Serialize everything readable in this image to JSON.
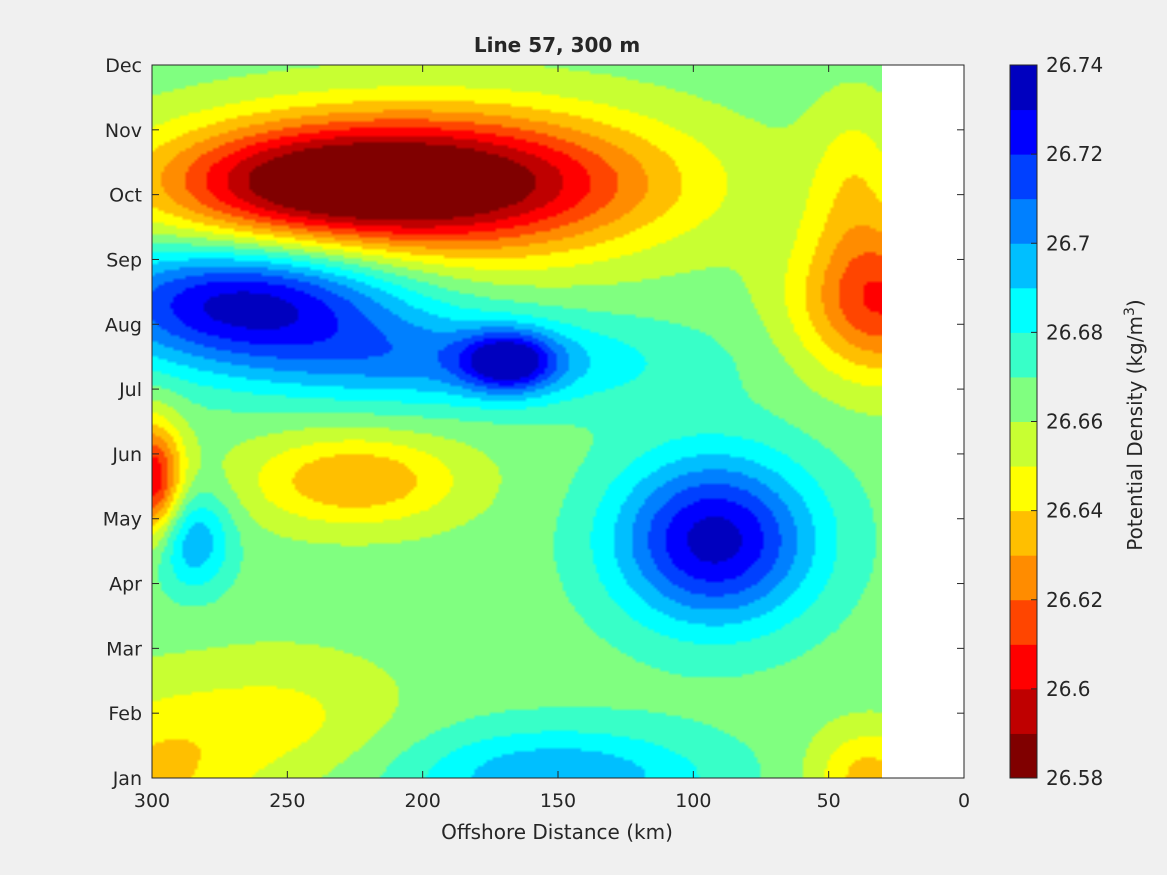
{
  "chart_data": {
    "type": "heatmap",
    "subtype": "filled-contour",
    "title": "Line 57, 300 m",
    "xlabel": "Offshore Distance (km)",
    "xlim": [
      300,
      0
    ],
    "x_reversed": true,
    "xticks": [
      300,
      250,
      200,
      150,
      100,
      50,
      0
    ],
    "y_categories": [
      "Jan",
      "Feb",
      "Mar",
      "Apr",
      "May",
      "Jun",
      "Jul",
      "Aug",
      "Sep",
      "Oct",
      "Nov",
      "Dec"
    ],
    "colorbar": {
      "label": "Potential Density (kg/m",
      "label_superscript": "3",
      "label_suffix": ")",
      "min": 26.58,
      "max": 26.74,
      "ticks": [
        26.58,
        26.6,
        26.62,
        26.64,
        26.66,
        26.68,
        26.7,
        26.72,
        26.74
      ],
      "tick_labels": [
        "26.58",
        "26.6",
        "26.62",
        "26.64",
        "26.66",
        "26.68",
        "26.7",
        "26.72",
        "26.74"
      ],
      "colors": [
        "#800000",
        "#bf0000",
        "#ff0000",
        "#ff4500",
        "#ff8c00",
        "#ffbf00",
        "#ffff00",
        "#c8ff32",
        "#80ff80",
        "#38ffc8",
        "#00ffff",
        "#00bfff",
        "#0080ff",
        "#0040ff",
        "#0000ff",
        "#0000bf"
      ]
    },
    "data_coverage_x": [
      300,
      30
    ],
    "grid": false,
    "background_value": 26.665,
    "anomalies": [
      {
        "x": 190,
        "y": "Nov",
        "value": 26.58,
        "sx": 55,
        "sy": 0.85
      },
      {
        "x": 250,
        "y": "Nov",
        "value": 26.62,
        "sx": 40,
        "sy": 0.7
      },
      {
        "x": 265,
        "y": "Sep",
        "value": 26.735,
        "sx": 40,
        "sy": 0.7
      },
      {
        "x": 190,
        "y": "Aug",
        "value": 26.7,
        "sx": 55,
        "sy": 0.55
      },
      {
        "x": 168,
        "y": "Aug",
        "value": 26.72,
        "sx": 12,
        "sy": 0.35
      },
      {
        "x": 92,
        "y": "May",
        "value": 26.735,
        "sx": 26,
        "sy": 1.0
      },
      {
        "x": 30,
        "y": "Sep",
        "value": 26.61,
        "sx": 22,
        "sy": 0.9
      },
      {
        "x": 225,
        "y": "Jun",
        "value": 26.63,
        "sx": 28,
        "sy": 0.55
      },
      {
        "x": 300,
        "y": "Jun",
        "value": 26.6,
        "sx": 8,
        "sy": 0.7
      },
      {
        "x": 285,
        "y": "May",
        "value": 26.7,
        "sx": 10,
        "sy": 0.6
      },
      {
        "x": 300,
        "y": "Jan",
        "value": 26.64,
        "sx": 25,
        "sy": 1.0
      },
      {
        "x": 250,
        "y": "Feb",
        "value": 26.648,
        "sx": 30,
        "sy": 0.8
      },
      {
        "x": 150,
        "y": "Jan",
        "value": 26.7,
        "sx": 40,
        "sy": 0.6
      },
      {
        "x": 35,
        "y": "Jan",
        "value": 26.635,
        "sx": 15,
        "sy": 0.6
      },
      {
        "x": 135,
        "y": "Jun",
        "value": 26.665,
        "sx": 8,
        "sy": 0.6
      },
      {
        "x": 40,
        "y": "Nov",
        "value": 26.645,
        "sx": 12,
        "sy": 1.0
      }
    ]
  }
}
